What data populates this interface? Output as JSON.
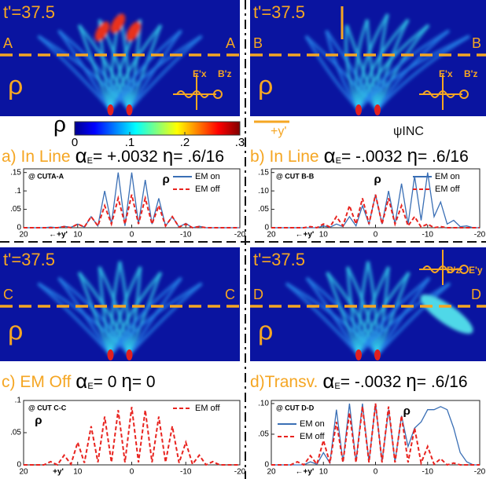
{
  "chart_data": [
    {
      "type": "line",
      "annotation": "@ CUTA-A",
      "rho": "ρ",
      "x_label": "←+y'",
      "legend": "upper right",
      "x": [
        20,
        18.75,
        17.5,
        16.25,
        15,
        13.75,
        12.5,
        11.25,
        10,
        8.75,
        7.5,
        6.25,
        5,
        3.75,
        2.5,
        1.25,
        0,
        -1.25,
        -2.5,
        -3.75,
        -5,
        -6.25,
        -7.5,
        -8.75,
        -10,
        -11.25,
        -12.5,
        -13.75,
        -15,
        -16.25,
        -17.5,
        -18.75,
        -20
      ],
      "xlim": [
        20,
        -20
      ],
      "xticks": [
        20,
        10,
        0,
        -10,
        -20
      ],
      "ylim": [
        0,
        0.16
      ],
      "yticks": [
        0,
        {
          "value": 0.05,
          "label": ".05"
        },
        {
          "value": 0.1,
          "label": ".1"
        },
        {
          "value": 0.15,
          "label": ".15"
        }
      ],
      "series": [
        {
          "name": "EM on",
          "color": "#3a6fb5",
          "dash": false,
          "values": [
            0,
            0,
            0,
            0,
            0.002,
            0,
            0.004,
            0.001,
            0.01,
            0.002,
            0.03,
            0.005,
            0.1,
            0.01,
            0.15,
            0.005,
            0.15,
            0.01,
            0.13,
            0.01,
            0.08,
            0.005,
            0.03,
            0.002,
            0.012,
            0,
            0.004,
            0,
            0,
            0,
            0,
            0,
            0
          ]
        },
        {
          "name": "EM off",
          "color": "#e8231f",
          "dash": true,
          "values": [
            0,
            0,
            0,
            0,
            0,
            0,
            0.003,
            0,
            0.01,
            0.002,
            0.03,
            0.005,
            0.06,
            0.01,
            0.08,
            0.01,
            0.09,
            0.01,
            0.08,
            0.01,
            0.06,
            0.005,
            0.03,
            0.002,
            0.01,
            0,
            0.003,
            0,
            0,
            0,
            0,
            0,
            0
          ]
        }
      ]
    },
    {
      "type": "line",
      "annotation": "@ CUT B-B",
      "rho": "ρ",
      "x_label": "←+y'",
      "legend": "upper right",
      "x": [
        20,
        18.75,
        17.5,
        16.25,
        15,
        13.75,
        12.5,
        11.25,
        10,
        8.75,
        7.5,
        6.25,
        5,
        3.75,
        2.5,
        1.25,
        0,
        -1.25,
        -2.5,
        -3.75,
        -5,
        -6.25,
        -7.5,
        -8.75,
        -10,
        -11.25,
        -12.5,
        -13.75,
        -15,
        -16.25,
        -17.5,
        -18.75,
        -20
      ],
      "xlim": [
        20,
        -20
      ],
      "xticks": [
        20,
        10,
        0,
        -10,
        -20
      ],
      "ylim": [
        0,
        0.16
      ],
      "yticks": [
        0,
        {
          "value": 0.05,
          "label": ".05"
        },
        {
          "value": 0.1,
          "label": ".10"
        },
        {
          "value": 0.15,
          "label": ".15"
        }
      ],
      "series": [
        {
          "name": "EM on",
          "color": "#3a6fb5",
          "dash": false,
          "values": [
            0,
            0,
            0,
            0,
            0,
            0,
            0,
            0,
            0.005,
            0.001,
            0.01,
            0.003,
            0.03,
            0.005,
            0.06,
            0.01,
            0.09,
            0.01,
            0.1,
            0.01,
            0.12,
            0.01,
            0.14,
            0.02,
            0.15,
            0.03,
            0.07,
            0.01,
            0.02,
            0.003,
            0.005,
            0,
            0
          ]
        },
        {
          "name": "EM off",
          "color": "#e8231f",
          "dash": true,
          "values": [
            0,
            0,
            0,
            0,
            0,
            0,
            0.003,
            0,
            0.01,
            0.002,
            0.03,
            0.005,
            0.06,
            0.01,
            0.08,
            0.01,
            0.09,
            0.01,
            0.08,
            0.01,
            0.06,
            0.005,
            0.03,
            0.002,
            0.01,
            0,
            0.003,
            0,
            0,
            0,
            0,
            0,
            0
          ]
        }
      ]
    },
    {
      "type": "line",
      "annotation": "@ CUT C-C",
      "rho": "ρ",
      "x_label": "+y'",
      "legend": "upper right",
      "x": [
        20,
        18.75,
        17.5,
        16.25,
        15,
        13.75,
        12.5,
        11.25,
        10,
        8.75,
        7.5,
        6.25,
        5,
        3.75,
        2.5,
        1.25,
        0,
        -1.25,
        -2.5,
        -3.75,
        -5,
        -6.25,
        -7.5,
        -8.75,
        -10,
        -11.25,
        -12.5,
        -13.75,
        -15,
        -16.25,
        -17.5,
        -18.75,
        -20
      ],
      "xlim": [
        20,
        -20
      ],
      "xticks": [
        20,
        10,
        0,
        -10,
        -20
      ],
      "ylim": [
        0,
        0.1
      ],
      "yticks": [
        0,
        {
          "value": 0.05,
          "label": ".05"
        },
        {
          "value": 0.1,
          "label": ".1"
        }
      ],
      "series": [
        {
          "name": "EM off",
          "color": "#e8231f",
          "dash": true,
          "values": [
            0,
            0,
            0,
            0,
            0.005,
            0,
            0.015,
            0.001,
            0.035,
            0.003,
            0.06,
            0.004,
            0.075,
            0.004,
            0.085,
            0.004,
            0.09,
            0.004,
            0.085,
            0.004,
            0.075,
            0.004,
            0.06,
            0.003,
            0.035,
            0.001,
            0.015,
            0,
            0.005,
            0,
            0,
            0,
            0
          ]
        }
      ]
    },
    {
      "type": "line",
      "annotation": "@ CUT D-D",
      "rho": "ρ",
      "x_label": "←+y'",
      "legend": "upper left",
      "x": [
        20,
        18.75,
        17.5,
        16.25,
        15,
        13.75,
        12.5,
        11.25,
        10,
        8.75,
        7.5,
        6.25,
        5,
        3.75,
        2.5,
        1.25,
        0,
        -1.25,
        -2.5,
        -3.75,
        -5,
        -6.25,
        -7.5,
        -8.75,
        -10,
        -11.25,
        -12.5,
        -13.75,
        -15,
        -16.25,
        -17.5,
        -18.75,
        -20
      ],
      "xlim": [
        20,
        -20
      ],
      "xticks": [
        20,
        10,
        0,
        -10,
        -20
      ],
      "ylim": [
        0,
        0.105
      ],
      "yticks": [
        0,
        {
          "value": 0.05,
          "label": ".05"
        },
        {
          "value": 0.1,
          "label": ".10"
        }
      ],
      "series": [
        {
          "name": "EM on",
          "color": "#3a6fb5",
          "dash": false,
          "values": [
            0,
            0,
            0,
            0,
            0,
            0,
            0.005,
            0.001,
            0.02,
            0.003,
            0.09,
            0.005,
            0.1,
            0.005,
            0.1,
            0.005,
            0.1,
            0.005,
            0.09,
            0.005,
            0.08,
            0.03,
            0.06,
            0.07,
            0.09,
            0.09,
            0.095,
            0.09,
            0.06,
            0.02,
            0.005,
            0,
            0
          ]
        },
        {
          "name": "EM off",
          "color": "#e8231f",
          "dash": true,
          "values": [
            0,
            0,
            0,
            0,
            0.005,
            0,
            0.015,
            0.001,
            0.04,
            0.003,
            0.07,
            0.004,
            0.085,
            0.004,
            0.095,
            0.004,
            0.1,
            0.004,
            0.095,
            0.004,
            0.08,
            0.004,
            0.06,
            0.003,
            0.03,
            0.001,
            0.01,
            0,
            0.003,
            0,
            0,
            0,
            0
          ]
        }
      ]
    }
  ],
  "colorbar": {
    "label": "ρ",
    "lim": [
      0,
      0.3
    ],
    "ticks": [
      0,
      {
        "value": 0.1,
        "label": ".1"
      },
      {
        "value": 0.2,
        "label": ".2"
      },
      {
        "value": 0.3,
        "label": ".3"
      }
    ]
  },
  "panels": [
    {
      "time": "t'=37.5",
      "cut_left": "A",
      "cut_right": "A",
      "rho": "ρ",
      "fields": [
        "E'x",
        "B'z"
      ],
      "caption": {
        "label": "a) In Line",
        "alpha": "α",
        "alpha_sub": "E",
        "alpha_value": "= +.0032",
        "eta": "η",
        "eta_value": "= .6/16"
      }
    },
    {
      "time": "t'=37.5",
      "cut_left": "B",
      "cut_right": "B",
      "rho": "ρ",
      "fields": [
        "E'x",
        "B'z"
      ],
      "extras": [
        "+y'",
        "ψINC"
      ],
      "caption": {
        "label": "b) In Line",
        "alpha": "α",
        "alpha_sub": "E",
        "alpha_value": "= -.0032",
        "eta": "η",
        "eta_value": "= .6/16"
      }
    },
    {
      "time": "t'=37.5",
      "cut_left": "C",
      "cut_right": "C",
      "rho": "ρ",
      "fields": [],
      "caption": {
        "label": "c) EM Off",
        "alpha": "α",
        "alpha_sub": "E",
        "alpha_value": "= 0",
        "eta": "η",
        "eta_value": "= 0"
      }
    },
    {
      "time": "t'=37.5",
      "cut_left": "D",
      "cut_right": "D",
      "rho": "ρ",
      "fields": [
        "B'z",
        "E'y"
      ],
      "caption": {
        "label": "d)Transv.",
        "alpha": "α",
        "alpha_sub": "E",
        "alpha_value": "= -.0032",
        "eta": "η",
        "eta_value": "= .6/16"
      }
    }
  ]
}
